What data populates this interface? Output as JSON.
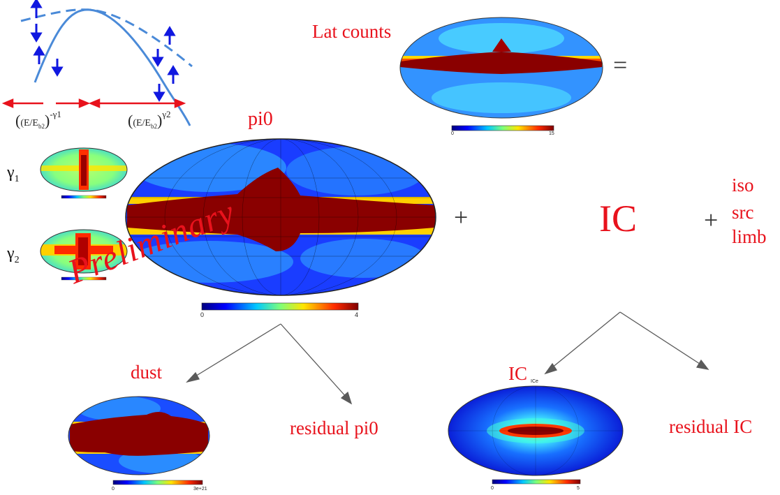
{
  "labels": {
    "lat_counts": "Lat counts",
    "equals": "=",
    "pi0": "pi0",
    "plus_1": "+",
    "ic_big": "IC",
    "plus_2": "+",
    "iso": "iso",
    "src": "src",
    "limb": "limb",
    "dust": "dust",
    "residual_pi0": "residual pi0",
    "ic_small": "IC",
    "residual_ic": "residual IC",
    "preliminary": "Preliminary"
  },
  "gamma": {
    "g1_symbol": "γ",
    "g1_sub": "1",
    "g2_symbol": "γ",
    "g2_sub": "2"
  },
  "spectrum": {
    "formula_1": {
      "base": "(E/E",
      "sub": "b2",
      "close": ")",
      "exp": "-γ1"
    },
    "formula_2": {
      "base": "(E/E",
      "sub": "b2",
      "close": ")",
      "exp": "γ2"
    }
  },
  "colorbars": {
    "lat_counts": {
      "min": "0",
      "max": "15"
    },
    "pi0": {
      "min": "0",
      "max": "4"
    },
    "dust": {
      "min": "0",
      "max": "3e+21"
    },
    "ic": {
      "min": "0",
      "max": "5"
    }
  },
  "ic_map_title": "ICe",
  "colors": {
    "accent_red": "#e8121c",
    "curve_blue": "#4a8ad8",
    "arrow_blue": "#1018e0",
    "arrow_gray": "#5a5a5a"
  }
}
